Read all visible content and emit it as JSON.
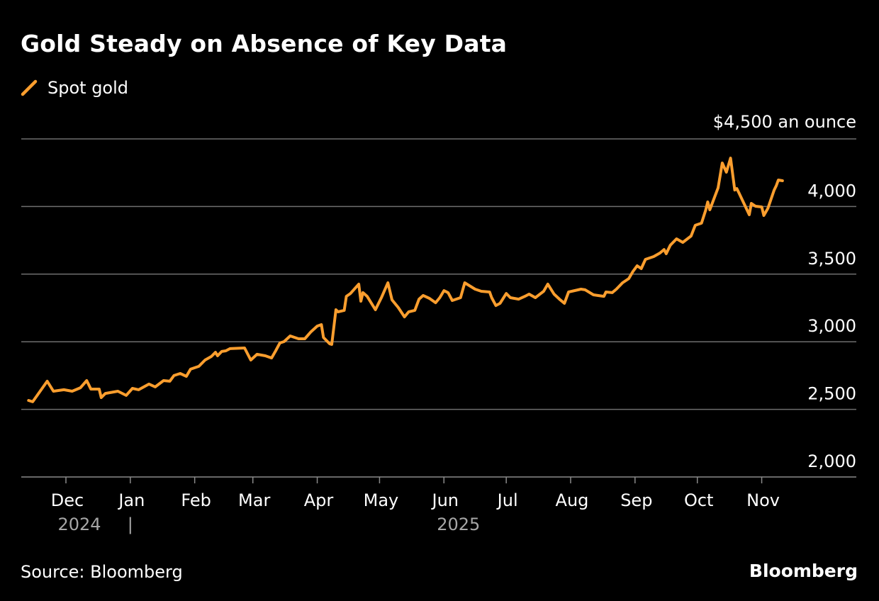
{
  "chart_data": {
    "type": "line",
    "title": "Gold Steady on Absence of Key Data",
    "unit_label": "$4,500 an ounce",
    "source": "Source: Bloomberg",
    "brand": "Bloomberg",
    "ylim": [
      2000,
      4500
    ],
    "yticks": [
      2000,
      2500,
      3000,
      3500,
      4000,
      4500
    ],
    "ytick_labels": [
      "2,000",
      "2,500",
      "3,000",
      "3,500",
      "4,000"
    ],
    "xticks": [
      {
        "label": "Dec",
        "date": "2024-12-01"
      },
      {
        "label": "Jan",
        "date": "2025-01-01"
      },
      {
        "label": "Feb",
        "date": "2025-02-01"
      },
      {
        "label": "Mar",
        "date": "2025-03-01"
      },
      {
        "label": "Apr",
        "date": "2025-04-01"
      },
      {
        "label": "May",
        "date": "2025-05-01"
      },
      {
        "label": "Jun",
        "date": "2025-06-01"
      },
      {
        "label": "Jul",
        "date": "2025-07-01"
      },
      {
        "label": "Aug",
        "date": "2025-08-01"
      },
      {
        "label": "Sep",
        "date": "2025-09-01"
      },
      {
        "label": "Oct",
        "date": "2025-10-01"
      },
      {
        "label": "Nov",
        "date": "2025-11-01"
      }
    ],
    "year_labels": [
      {
        "label": "2024",
        "date": "2024-12-01"
      },
      {
        "label": "|",
        "date": "2025-01-01"
      },
      {
        "label": "2025",
        "date": "2025-06-08"
      }
    ],
    "grid": true,
    "legend_position": "top-left",
    "series": [
      {
        "name": "Spot gold",
        "color": "#fb9e2e",
        "x": [
          "2024-11-13",
          "2024-11-15",
          "2024-11-22",
          "2024-11-25",
          "2024-11-30",
          "2024-12-04",
          "2024-12-08",
          "2024-12-11",
          "2024-12-13",
          "2024-12-17",
          "2024-12-18",
          "2024-12-20",
          "2024-12-26",
          "2024-12-30",
          "2025-01-02",
          "2025-01-05",
          "2025-01-10",
          "2025-01-13",
          "2025-01-17",
          "2025-01-20",
          "2025-01-22",
          "2025-01-25",
          "2025-01-28",
          "2025-01-30",
          "2025-02-03",
          "2025-02-06",
          "2025-02-09",
          "2025-02-11",
          "2025-02-12",
          "2025-02-14",
          "2025-02-16",
          "2025-02-18",
          "2025-02-25",
          "2025-02-28",
          "2025-03-03",
          "2025-03-07",
          "2025-03-10",
          "2025-03-12",
          "2025-03-14",
          "2025-03-16",
          "2025-03-19",
          "2025-03-23",
          "2025-03-26",
          "2025-03-29",
          "2025-04-01",
          "2025-04-03",
          "2025-04-04",
          "2025-04-07",
          "2025-04-08",
          "2025-04-10",
          "2025-04-11",
          "2025-04-14",
          "2025-04-15",
          "2025-04-17",
          "2025-04-21",
          "2025-04-22",
          "2025-04-23",
          "2025-04-25",
          "2025-04-29",
          "2025-05-02",
          "2025-05-05",
          "2025-05-07",
          "2025-05-10",
          "2025-05-13",
          "2025-05-15",
          "2025-05-18",
          "2025-05-20",
          "2025-05-22",
          "2025-05-25",
          "2025-05-28",
          "2025-05-30",
          "2025-06-01",
          "2025-06-03",
          "2025-06-05",
          "2025-06-09",
          "2025-06-11",
          "2025-06-16",
          "2025-06-19",
          "2025-06-23",
          "2025-06-24",
          "2025-06-26",
          "2025-06-28",
          "2025-07-01",
          "2025-07-03",
          "2025-07-07",
          "2025-07-10",
          "2025-07-12",
          "2025-07-15",
          "2025-07-19",
          "2025-07-21",
          "2025-07-24",
          "2025-07-27",
          "2025-07-29",
          "2025-07-31",
          "2025-08-06",
          "2025-08-08",
          "2025-08-12",
          "2025-08-14",
          "2025-08-17",
          "2025-08-18",
          "2025-08-21",
          "2025-08-23",
          "2025-08-26",
          "2025-08-29",
          "2025-08-31",
          "2025-09-02",
          "2025-09-04",
          "2025-09-06",
          "2025-09-10",
          "2025-09-13",
          "2025-09-15",
          "2025-09-16",
          "2025-09-18",
          "2025-09-21",
          "2025-09-24",
          "2025-09-28",
          "2025-09-30",
          "2025-10-03",
          "2025-10-05",
          "2025-10-06",
          "2025-10-07",
          "2025-10-11",
          "2025-10-13",
          "2025-10-15",
          "2025-10-17",
          "2025-10-19",
          "2025-10-20",
          "2025-10-21",
          "2025-10-26",
          "2025-10-27",
          "2025-10-29",
          "2025-11-01",
          "2025-11-02",
          "2025-11-04",
          "2025-11-07",
          "2025-11-08",
          "2025-11-09",
          "2025-11-11"
        ],
        "values": [
          2566,
          2556,
          2708,
          2634,
          2645,
          2634,
          2660,
          2713,
          2650,
          2650,
          2587,
          2618,
          2634,
          2603,
          2655,
          2645,
          2687,
          2666,
          2713,
          2708,
          2750,
          2765,
          2744,
          2797,
          2818,
          2865,
          2891,
          2922,
          2896,
          2928,
          2933,
          2949,
          2954,
          2865,
          2907,
          2896,
          2880,
          2933,
          2991,
          3001,
          3043,
          3022,
          3022,
          3074,
          3116,
          3127,
          3032,
          2985,
          2980,
          3237,
          3221,
          3232,
          3336,
          3357,
          3426,
          3300,
          3363,
          3336,
          3237,
          3330,
          3436,
          3310,
          3253,
          3184,
          3221,
          3232,
          3315,
          3342,
          3321,
          3289,
          3326,
          3378,
          3363,
          3305,
          3326,
          3436,
          3389,
          3373,
          3368,
          3326,
          3268,
          3284,
          3357,
          3326,
          3315,
          3336,
          3352,
          3326,
          3373,
          3426,
          3352,
          3310,
          3284,
          3368,
          3389,
          3384,
          3347,
          3342,
          3336,
          3368,
          3363,
          3389,
          3436,
          3467,
          3520,
          3562,
          3541,
          3609,
          3630,
          3656,
          3682,
          3651,
          3714,
          3761,
          3735,
          3782,
          3861,
          3877,
          3971,
          4034,
          3976,
          4138,
          4322,
          4254,
          4358,
          4122,
          4133,
          4102,
          3939,
          4023,
          4002,
          3997,
          3934,
          3987,
          4122,
          4154,
          4196,
          4191
        ]
      }
    ]
  }
}
